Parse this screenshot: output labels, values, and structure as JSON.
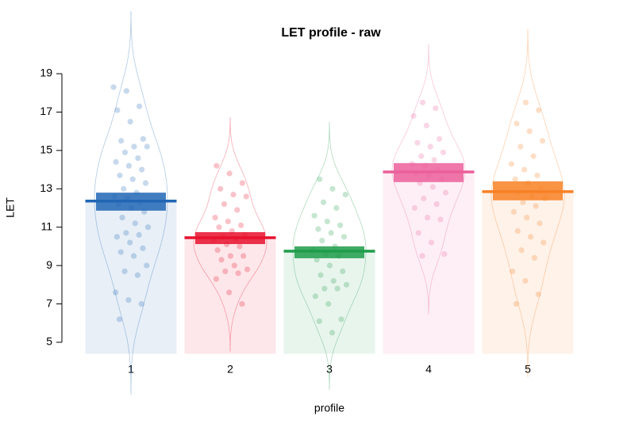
{
  "chart_data": {
    "type": "pirate",
    "title": "LET profile - raw",
    "x_label": "profile",
    "y_label": "LET",
    "categories": [
      "1",
      "2",
      "3",
      "4",
      "5"
    ],
    "ylim": [
      4.4,
      19.6
    ],
    "yticks": [
      5,
      7,
      9,
      11,
      13,
      15,
      17,
      19
    ],
    "series": [
      {
        "color": "#2166b5",
        "mean": 12.36,
        "ci_low": 11.86,
        "ci_high": 12.8,
        "points": [
          18.3,
          18.1,
          17.3,
          17.1,
          16.5,
          15.6,
          15.5,
          15.2,
          15.2,
          14.9,
          14.6,
          14.4,
          14.2,
          14.0,
          13.7,
          13.5,
          13.3,
          13.0,
          12.8,
          12.6,
          12.5,
          12.3,
          12.2,
          12.0,
          11.8,
          11.5,
          11.2,
          11.0,
          10.7,
          10.6,
          10.5,
          10.2,
          9.9,
          9.7,
          9.5,
          9.0,
          8.7,
          8.5,
          7.6,
          7.2,
          7.0,
          6.2
        ]
      },
      {
        "color": "#e8112d",
        "mean": 10.45,
        "ci_low": 10.12,
        "ci_high": 10.74,
        "points": [
          14.2,
          13.8,
          13.3,
          13.0,
          12.7,
          12.6,
          12.2,
          11.9,
          11.5,
          11.3,
          11.1,
          11.0,
          10.8,
          10.6,
          10.5,
          10.4,
          10.3,
          10.1,
          10.0,
          9.8,
          9.5,
          9.5,
          9.3,
          9.0,
          8.8,
          8.7,
          8.6,
          8.3,
          7.6,
          7.0
        ]
      },
      {
        "color": "#1e9c4a",
        "mean": 9.75,
        "ci_low": 9.38,
        "ci_high": 10.0,
        "points": [
          13.5,
          13.0,
          12.7,
          12.3,
          12.0,
          11.6,
          11.3,
          11.1,
          10.9,
          10.7,
          10.5,
          10.3,
          10.0,
          9.8,
          9.6,
          9.5,
          9.3,
          9.0,
          8.7,
          8.5,
          8.2,
          8.0,
          7.8,
          7.8,
          7.4,
          7.0,
          6.2,
          6.1,
          5.5
        ]
      },
      {
        "color": "#ec5f9b",
        "mean": 13.88,
        "ci_low": 13.35,
        "ci_high": 14.34,
        "points": [
          17.5,
          17.2,
          16.8,
          16.3,
          15.6,
          15.4,
          15.2,
          14.9,
          14.7,
          14.5,
          14.3,
          14.2,
          14.0,
          13.8,
          13.7,
          13.5,
          13.3,
          13.1,
          12.8,
          12.5,
          12.2,
          12.0,
          11.5,
          11.4,
          10.7,
          10.2,
          9.6,
          9.5
        ]
      },
      {
        "color": "#f88125",
        "mean": 12.85,
        "ci_low": 12.4,
        "ci_high": 13.39,
        "points": [
          17.5,
          17.1,
          16.4,
          16.0,
          15.5,
          15.2,
          14.7,
          14.3,
          14.0,
          13.7,
          13.5,
          13.3,
          13.0,
          12.8,
          12.6,
          12.5,
          12.3,
          12.1,
          11.8,
          11.5,
          11.2,
          10.8,
          10.5,
          10.2,
          9.8,
          9.4,
          8.7,
          8.2,
          7.5,
          7.0
        ]
      }
    ]
  }
}
